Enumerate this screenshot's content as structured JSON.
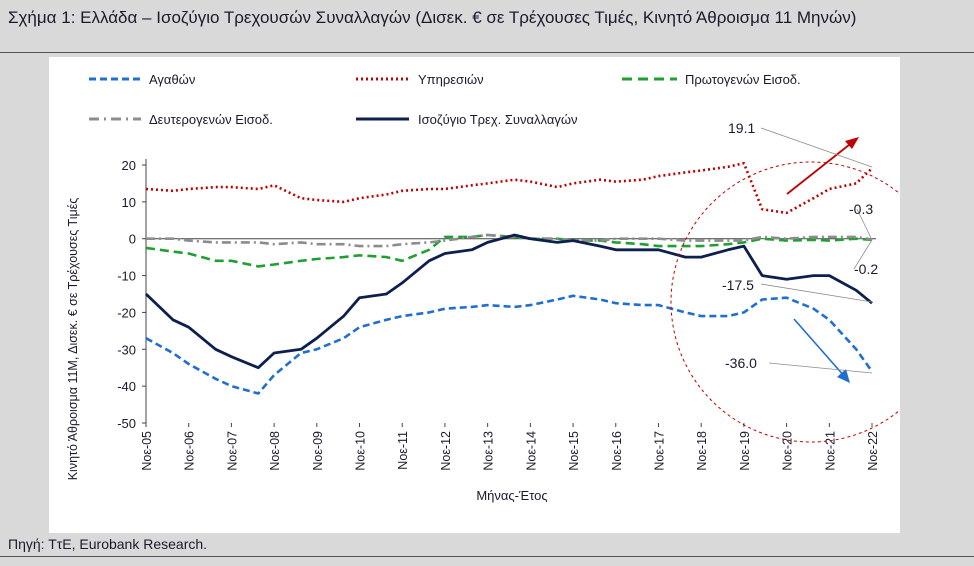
{
  "title": "Σχήμα 1: Ελλάδα – Ισοζύγιο Τρεχουσών Συναλλαγών (Δισεκ. € σε Τρέχουσες Τιμές, Κινητό Άθροισμα 11 Μηνών)",
  "source": "Πηγή: ΤτΕ, Eurobank Research.",
  "colors": {
    "goods": "#1f6fd0",
    "services": "#c00000",
    "primary": "#1fa030",
    "secondary": "#8c8c8c",
    "balance": "#0d1f4f",
    "highlight": "#c00000"
  },
  "chart_data": {
    "type": "line",
    "xlabel": "Μήνας-Έτος",
    "ylabel": "Κινητό Άθροισμα 11Μ, Δισεκ. € σε Τρέχουσες Τιμές",
    "ylim": [
      -50,
      25
    ],
    "yticks": [
      "20",
      "10",
      "0",
      "-10",
      "-20",
      "-30",
      "-40",
      "-50"
    ],
    "xticks": [
      "Νοε-05",
      "Νοε-06",
      "Νοε-07",
      "Νοε-08",
      "Νοε-09",
      "Νοε-10",
      "Νοε-11",
      "Νοε-12",
      "Νοε-13",
      "Νοε-14",
      "Νοε-15",
      "Νοε-16",
      "Νοε-17",
      "Νοε-18",
      "Νοε-19",
      "Νοε-20",
      "Νοε-21",
      "Νοε-22"
    ],
    "x": [
      2005.87,
      2006.5,
      2006.87,
      2007.5,
      2007.87,
      2008.5,
      2008.87,
      2009.5,
      2009.87,
      2010.5,
      2010.87,
      2011.5,
      2011.87,
      2012.5,
      2012.87,
      2013.5,
      2013.87,
      2014.5,
      2014.87,
      2015.5,
      2015.87,
      2016.5,
      2016.87,
      2017.5,
      2017.87,
      2018.5,
      2018.87,
      2019.5,
      2019.87,
      2020.3,
      2020.87,
      2021.5,
      2021.87,
      2022.5,
      2022.87
    ],
    "series": [
      {
        "name": "Αγαθών",
        "values": [
          -27,
          -31,
          -34,
          -38,
          -40,
          -42,
          -37,
          -31,
          -30,
          -27,
          -24,
          -22,
          -21,
          -20,
          -19,
          -18.5,
          -18,
          -18.5,
          -18,
          -16.5,
          -15.5,
          -16.5,
          -17.5,
          -18,
          -18,
          -20,
          -21,
          -21,
          -20,
          -16.5,
          -16,
          -19,
          -22,
          -30,
          -36
        ]
      },
      {
        "name": "Υπηρεσιών",
        "values": [
          13.5,
          13,
          13.5,
          14,
          14,
          13.5,
          14.5,
          11,
          10.5,
          10,
          11,
          12,
          13,
          13.5,
          13.5,
          14.5,
          15,
          16,
          15.5,
          14,
          15,
          16,
          15.5,
          16,
          17,
          18,
          18.5,
          19.5,
          20.5,
          8,
          7,
          11,
          13.5,
          15,
          19.1
        ]
      },
      {
        "name": "Πρωτογενών Εισοδ.",
        "values": [
          -2.5,
          -3.5,
          -4,
          -6,
          -6,
          -7.5,
          -7,
          -6,
          -5.5,
          -5,
          -4.5,
          -5,
          -6,
          -3,
          0.5,
          0.5,
          1,
          0.5,
          0,
          0,
          -0.5,
          -0.5,
          -1,
          -1.5,
          -2,
          -2,
          -2,
          -1.5,
          -1,
          0,
          -0.5,
          -0.3,
          -0.5,
          0,
          -0.3
        ]
      },
      {
        "name": "Δευτερογενών Εισοδ.",
        "values": [
          0,
          0,
          -0.5,
          -1,
          -1,
          -1,
          -1.5,
          -1,
          -1.5,
          -1.5,
          -2,
          -2,
          -1.5,
          -1,
          -0.5,
          0.5,
          1,
          0.5,
          0,
          0,
          -0.5,
          -0.5,
          0,
          0,
          0,
          -0.5,
          -0.5,
          -0.5,
          -0.5,
          0.5,
          0,
          0.5,
          0.5,
          0.5,
          -0.2
        ]
      },
      {
        "name": "Ισοζύγιο Τρεχ. Συναλλαγών",
        "values": [
          -15,
          -22,
          -24,
          -30,
          -32,
          -35,
          -31,
          -30,
          -27,
          -21,
          -16,
          -15,
          -12,
          -6,
          -4,
          -3,
          -1,
          1,
          0,
          -1,
          -0.5,
          -2,
          -3,
          -3,
          -3,
          -5,
          -5,
          -3,
          -2,
          -10,
          -11,
          -10,
          -10,
          -14,
          -17.5
        ]
      }
    ],
    "annotations": [
      "19.1",
      "-0.3",
      "-0.2",
      "-17.5",
      "-36.0"
    ],
    "legend": "top"
  }
}
